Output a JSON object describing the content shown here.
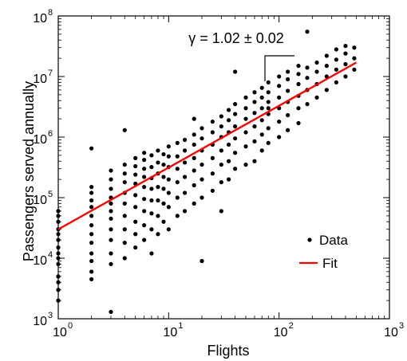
{
  "chart_data": {
    "type": "scatter",
    "x_scale": "log",
    "y_scale": "log",
    "xlim": [
      1,
      1000
    ],
    "ylim": [
      1000,
      100000000
    ],
    "xlabel": "Flights",
    "ylabel": "Passengers served annually",
    "x_ticks": [
      {
        "base": "10",
        "exp": "0",
        "value": 1
      },
      {
        "base": "10",
        "exp": "1",
        "value": 10
      },
      {
        "base": "10",
        "exp": "2",
        "value": 100
      },
      {
        "base": "10",
        "exp": "3",
        "value": 1000
      }
    ],
    "y_ticks": [
      {
        "base": "10",
        "exp": "3",
        "value": 1000
      },
      {
        "base": "10",
        "exp": "4",
        "value": 10000
      },
      {
        "base": "10",
        "exp": "5",
        "value": 100000
      },
      {
        "base": "10",
        "exp": "6",
        "value": 1000000
      },
      {
        "base": "10",
        "exp": "7",
        "value": 10000000
      },
      {
        "base": "10",
        "exp": "8",
        "value": 100000000
      }
    ],
    "annotation": "γ = 1.02 ± 0.02",
    "legend": {
      "placement": "lower-right",
      "entries": [
        {
          "label": "Data",
          "marker": "dot",
          "color": "#000000"
        },
        {
          "label": "Fit",
          "marker": "line",
          "color": "#ff0000"
        }
      ]
    },
    "series": [
      {
        "name": "Data",
        "color": "#000000",
        "points": [
          [
            1,
            3000
          ],
          [
            1,
            5000
          ],
          [
            1,
            8000
          ],
          [
            1,
            12000
          ],
          [
            1,
            15000
          ],
          [
            1,
            20000
          ],
          [
            1,
            25000
          ],
          [
            1,
            30000
          ],
          [
            1,
            40000
          ],
          [
            1,
            50000
          ],
          [
            1,
            60000
          ],
          [
            1,
            2000
          ],
          [
            1,
            4000
          ],
          [
            1,
            10000
          ],
          [
            2,
            4500
          ],
          [
            2,
            6000
          ],
          [
            2,
            9000
          ],
          [
            2,
            12000
          ],
          [
            2,
            18000
          ],
          [
            2,
            25000
          ],
          [
            2,
            35000
          ],
          [
            2,
            50000
          ],
          [
            2,
            70000
          ],
          [
            2,
            90000
          ],
          [
            2,
            120000
          ],
          [
            2,
            150000
          ],
          [
            2,
            650000
          ],
          [
            3,
            1300
          ],
          [
            3,
            8000
          ],
          [
            3,
            12000
          ],
          [
            3,
            20000
          ],
          [
            3,
            30000
          ],
          [
            3,
            45000
          ],
          [
            3,
            60000
          ],
          [
            3,
            80000
          ],
          [
            3,
            100000
          ],
          [
            3,
            140000
          ],
          [
            3,
            200000
          ],
          [
            3,
            280000
          ],
          [
            4,
            10000
          ],
          [
            4,
            18000
          ],
          [
            4,
            30000
          ],
          [
            4,
            50000
          ],
          [
            4,
            80000
          ],
          [
            4,
            120000
          ],
          [
            4,
            180000
          ],
          [
            4,
            250000
          ],
          [
            4,
            350000
          ],
          [
            4,
            1300000
          ],
          [
            5,
            15000
          ],
          [
            5,
            25000
          ],
          [
            5,
            40000
          ],
          [
            5,
            70000
          ],
          [
            5,
            110000
          ],
          [
            5,
            170000
          ],
          [
            5,
            240000
          ],
          [
            5,
            330000
          ],
          [
            5,
            450000
          ],
          [
            6,
            20000
          ],
          [
            6,
            35000
          ],
          [
            6,
            60000
          ],
          [
            6,
            95000
          ],
          [
            6,
            150000
          ],
          [
            6,
            220000
          ],
          [
            6,
            300000
          ],
          [
            6,
            420000
          ],
          [
            6,
            550000
          ],
          [
            7,
            12000
          ],
          [
            7,
            30000
          ],
          [
            7,
            55000
          ],
          [
            7,
            90000
          ],
          [
            7,
            140000
          ],
          [
            7,
            210000
          ],
          [
            7,
            320000
          ],
          [
            7,
            500000
          ],
          [
            8,
            25000
          ],
          [
            8,
            50000
          ],
          [
            8,
            90000
          ],
          [
            8,
            150000
          ],
          [
            8,
            250000
          ],
          [
            8,
            380000
          ],
          [
            8,
            600000
          ],
          [
            9,
            40000
          ],
          [
            9,
            80000
          ],
          [
            9,
            140000
          ],
          [
            9,
            220000
          ],
          [
            9,
            350000
          ],
          [
            9,
            520000
          ],
          [
            10,
            30000
          ],
          [
            10,
            70000
          ],
          [
            10,
            120000
          ],
          [
            10,
            200000
          ],
          [
            10,
            320000
          ],
          [
            10,
            480000
          ],
          [
            10,
            700000
          ],
          [
            12,
            50000
          ],
          [
            12,
            100000
          ],
          [
            12,
            180000
          ],
          [
            12,
            300000
          ],
          [
            12,
            480000
          ],
          [
            12,
            800000
          ],
          [
            14,
            60000
          ],
          [
            14,
            120000
          ],
          [
            14,
            220000
          ],
          [
            14,
            380000
          ],
          [
            14,
            600000
          ],
          [
            14,
            900000
          ],
          [
            17,
            80000
          ],
          [
            17,
            160000
          ],
          [
            17,
            280000
          ],
          [
            17,
            450000
          ],
          [
            17,
            750000
          ],
          [
            17,
            1100000
          ],
          [
            17,
            2000000
          ],
          [
            20,
            9000
          ],
          [
            20,
            100000
          ],
          [
            20,
            200000
          ],
          [
            20,
            350000
          ],
          [
            20,
            600000
          ],
          [
            20,
            950000
          ],
          [
            20,
            1400000
          ],
          [
            25,
            130000
          ],
          [
            25,
            250000
          ],
          [
            25,
            450000
          ],
          [
            25,
            750000
          ],
          [
            25,
            1200000
          ],
          [
            25,
            1800000
          ],
          [
            30,
            60000
          ],
          [
            30,
            180000
          ],
          [
            30,
            350000
          ],
          [
            30,
            600000
          ],
          [
            30,
            1000000
          ],
          [
            30,
            1500000
          ],
          [
            30,
            2200000
          ],
          [
            35,
            200000
          ],
          [
            35,
            400000
          ],
          [
            35,
            750000
          ],
          [
            35,
            1200000
          ],
          [
            35,
            1900000
          ],
          [
            35,
            2800000
          ],
          [
            40,
            12000000
          ],
          [
            40,
            300000
          ],
          [
            40,
            550000
          ],
          [
            40,
            950000
          ],
          [
            40,
            1500000
          ],
          [
            40,
            2400000
          ],
          [
            40,
            3500000
          ],
          [
            50,
            350000
          ],
          [
            50,
            700000
          ],
          [
            50,
            1200000
          ],
          [
            50,
            2000000
          ],
          [
            50,
            3000000
          ],
          [
            50,
            4500000
          ],
          [
            60,
            400000
          ],
          [
            60,
            850000
          ],
          [
            60,
            1500000
          ],
          [
            60,
            2500000
          ],
          [
            60,
            3800000
          ],
          [
            60,
            5500000
          ],
          [
            70,
            600000
          ],
          [
            70,
            1100000
          ],
          [
            70,
            1900000
          ],
          [
            70,
            3000000
          ],
          [
            70,
            4500000
          ],
          [
            70,
            6500000
          ],
          [
            80,
            3000000
          ],
          [
            80,
            800000
          ],
          [
            80,
            1400000
          ],
          [
            80,
            2400000
          ],
          [
            80,
            3800000
          ],
          [
            80,
            5500000
          ],
          [
            80,
            8000000
          ],
          [
            100,
            1000000
          ],
          [
            100,
            1800000
          ],
          [
            100,
            3000000
          ],
          [
            100,
            4500000
          ],
          [
            100,
            7000000
          ],
          [
            100,
            10000000
          ],
          [
            120,
            1300000
          ],
          [
            120,
            2300000
          ],
          [
            120,
            3800000
          ],
          [
            120,
            5800000
          ],
          [
            120,
            9000000
          ],
          [
            120,
            12000000
          ],
          [
            150,
            1700000
          ],
          [
            150,
            3000000
          ],
          [
            150,
            4800000
          ],
          [
            150,
            7500000
          ],
          [
            150,
            11000000
          ],
          [
            150,
            15000000
          ],
          [
            180,
            55000000
          ],
          [
            180,
            3500000
          ],
          [
            180,
            6000000
          ],
          [
            180,
            9500000
          ],
          [
            180,
            14000000
          ],
          [
            220,
            4500000
          ],
          [
            220,
            7500000
          ],
          [
            220,
            12000000
          ],
          [
            220,
            17000000
          ],
          [
            270,
            6000000
          ],
          [
            270,
            10000000
          ],
          [
            270,
            15000000
          ],
          [
            270,
            22000000
          ],
          [
            330,
            8000000
          ],
          [
            330,
            13000000
          ],
          [
            330,
            19000000
          ],
          [
            330,
            28000000
          ],
          [
            400,
            10000000
          ],
          [
            400,
            16000000
          ],
          [
            400,
            24000000
          ],
          [
            400,
            32000000
          ],
          [
            480,
            13000000
          ],
          [
            480,
            20000000
          ],
          [
            480,
            30000000
          ]
        ]
      },
      {
        "name": "Fit",
        "color": "#ff0000",
        "kind": "line",
        "points": [
          [
            1,
            30000
          ],
          [
            500,
            17000000
          ]
        ]
      }
    ]
  }
}
